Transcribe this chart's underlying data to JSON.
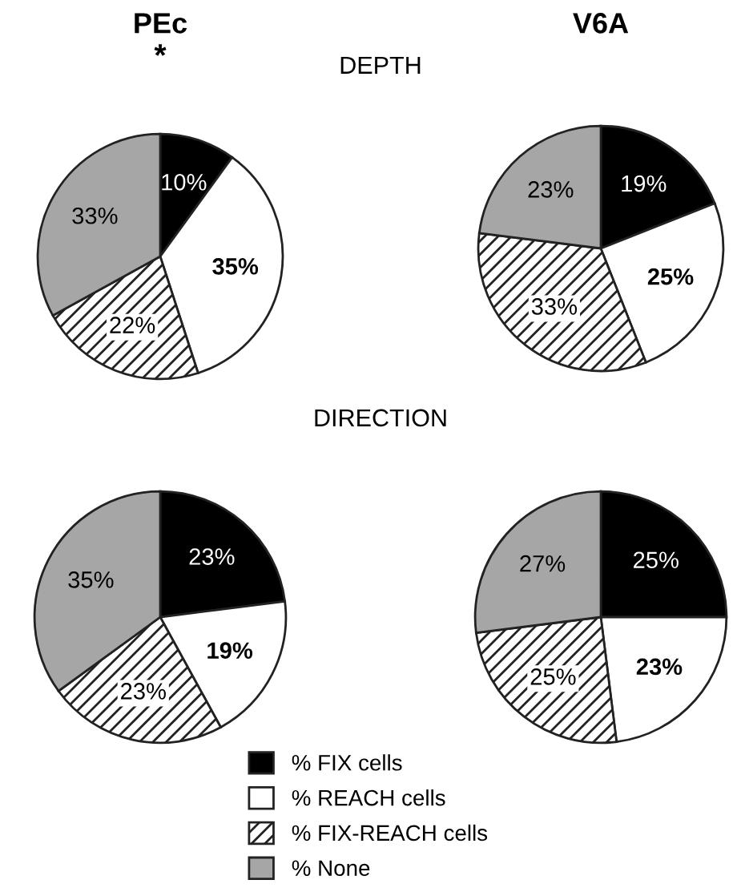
{
  "chart_data": [
    {
      "type": "pie",
      "title": "PEc",
      "subtitle": "DEPTH",
      "annotations": [
        "*"
      ],
      "categories": [
        "% FIX cells",
        "% REACH cells",
        "% FIX-REACH cells",
        "% None"
      ],
      "values": [
        10,
        35,
        22,
        33
      ],
      "colors": [
        "#000000",
        "#ffffff",
        "#222222",
        "#a6a6a6"
      ],
      "value_labels": [
        "10%",
        "35%",
        "22%",
        "33%"
      ],
      "legend": "bottom"
    },
    {
      "type": "pie",
      "title": "V6A",
      "values": [
        19,
        25,
        33,
        23
      ],
      "colors": [
        "#000000",
        "#ffffff",
        "#222222",
        "#a6a6a6"
      ],
      "value_labels": [
        "19%",
        "25%",
        "33%",
        "23%"
      ]
    },
    {
      "type": "pie",
      "subtitle": "DIRECTION",
      "values": [
        23,
        19,
        23,
        35
      ],
      "colors": [
        "#000000",
        "#ffffff",
        "#222222",
        "#a6a6a6"
      ],
      "value_labels": [
        "23%",
        "19%",
        "23%",
        "35%"
      ]
    },
    {
      "type": "pie",
      "values": [
        25,
        23,
        25,
        27
      ],
      "colors": [
        "#000000",
        "#ffffff",
        "#222222",
        "#a6a6a6"
      ],
      "value_labels": [
        "25%",
        "23%",
        "25%",
        "27%"
      ]
    }
  ]
}
